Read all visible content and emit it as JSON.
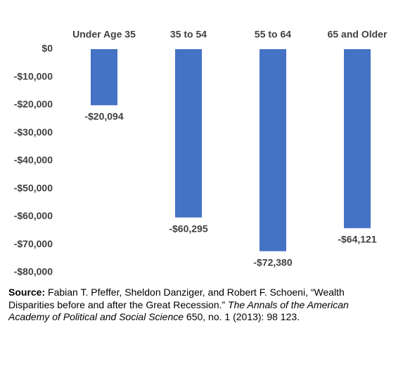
{
  "chart_data": {
    "type": "bar",
    "categories": [
      "Under Age 35",
      "35 to 54",
      "55 to 64",
      "65 and Older"
    ],
    "values": [
      -20094,
      -60295,
      -72380,
      -64121
    ],
    "value_labels": [
      "-$20,094",
      "-$60,295",
      "-$72,380",
      "-$64,121"
    ],
    "color": "#4472c4",
    "ylim": [
      -80000,
      0
    ],
    "yticks": [
      {
        "value": 0,
        "label": "$0"
      },
      {
        "value": -10000,
        "label": "-$10,000"
      },
      {
        "value": -20000,
        "label": "-$20,000"
      },
      {
        "value": -30000,
        "label": "-$30,000"
      },
      {
        "value": -40000,
        "label": "-$40,000"
      },
      {
        "value": -50000,
        "label": "-$50,000"
      },
      {
        "value": -60000,
        "label": "-$60,000"
      },
      {
        "value": -70000,
        "label": "-$70,000"
      },
      {
        "value": -80000,
        "label": "-$80,000"
      }
    ],
    "grid": false
  },
  "source": {
    "label": "Source:",
    "text_1": " Fabian T. Pfeffer, Sheldon Danziger, and Robert F. Schoeni, “Wealth Disparities before and after the Great Recession.” ",
    "journal": "The Annals of the American Academy of Political and Social Science",
    "text_2": " 650, no. 1 (2013): 98 123."
  }
}
